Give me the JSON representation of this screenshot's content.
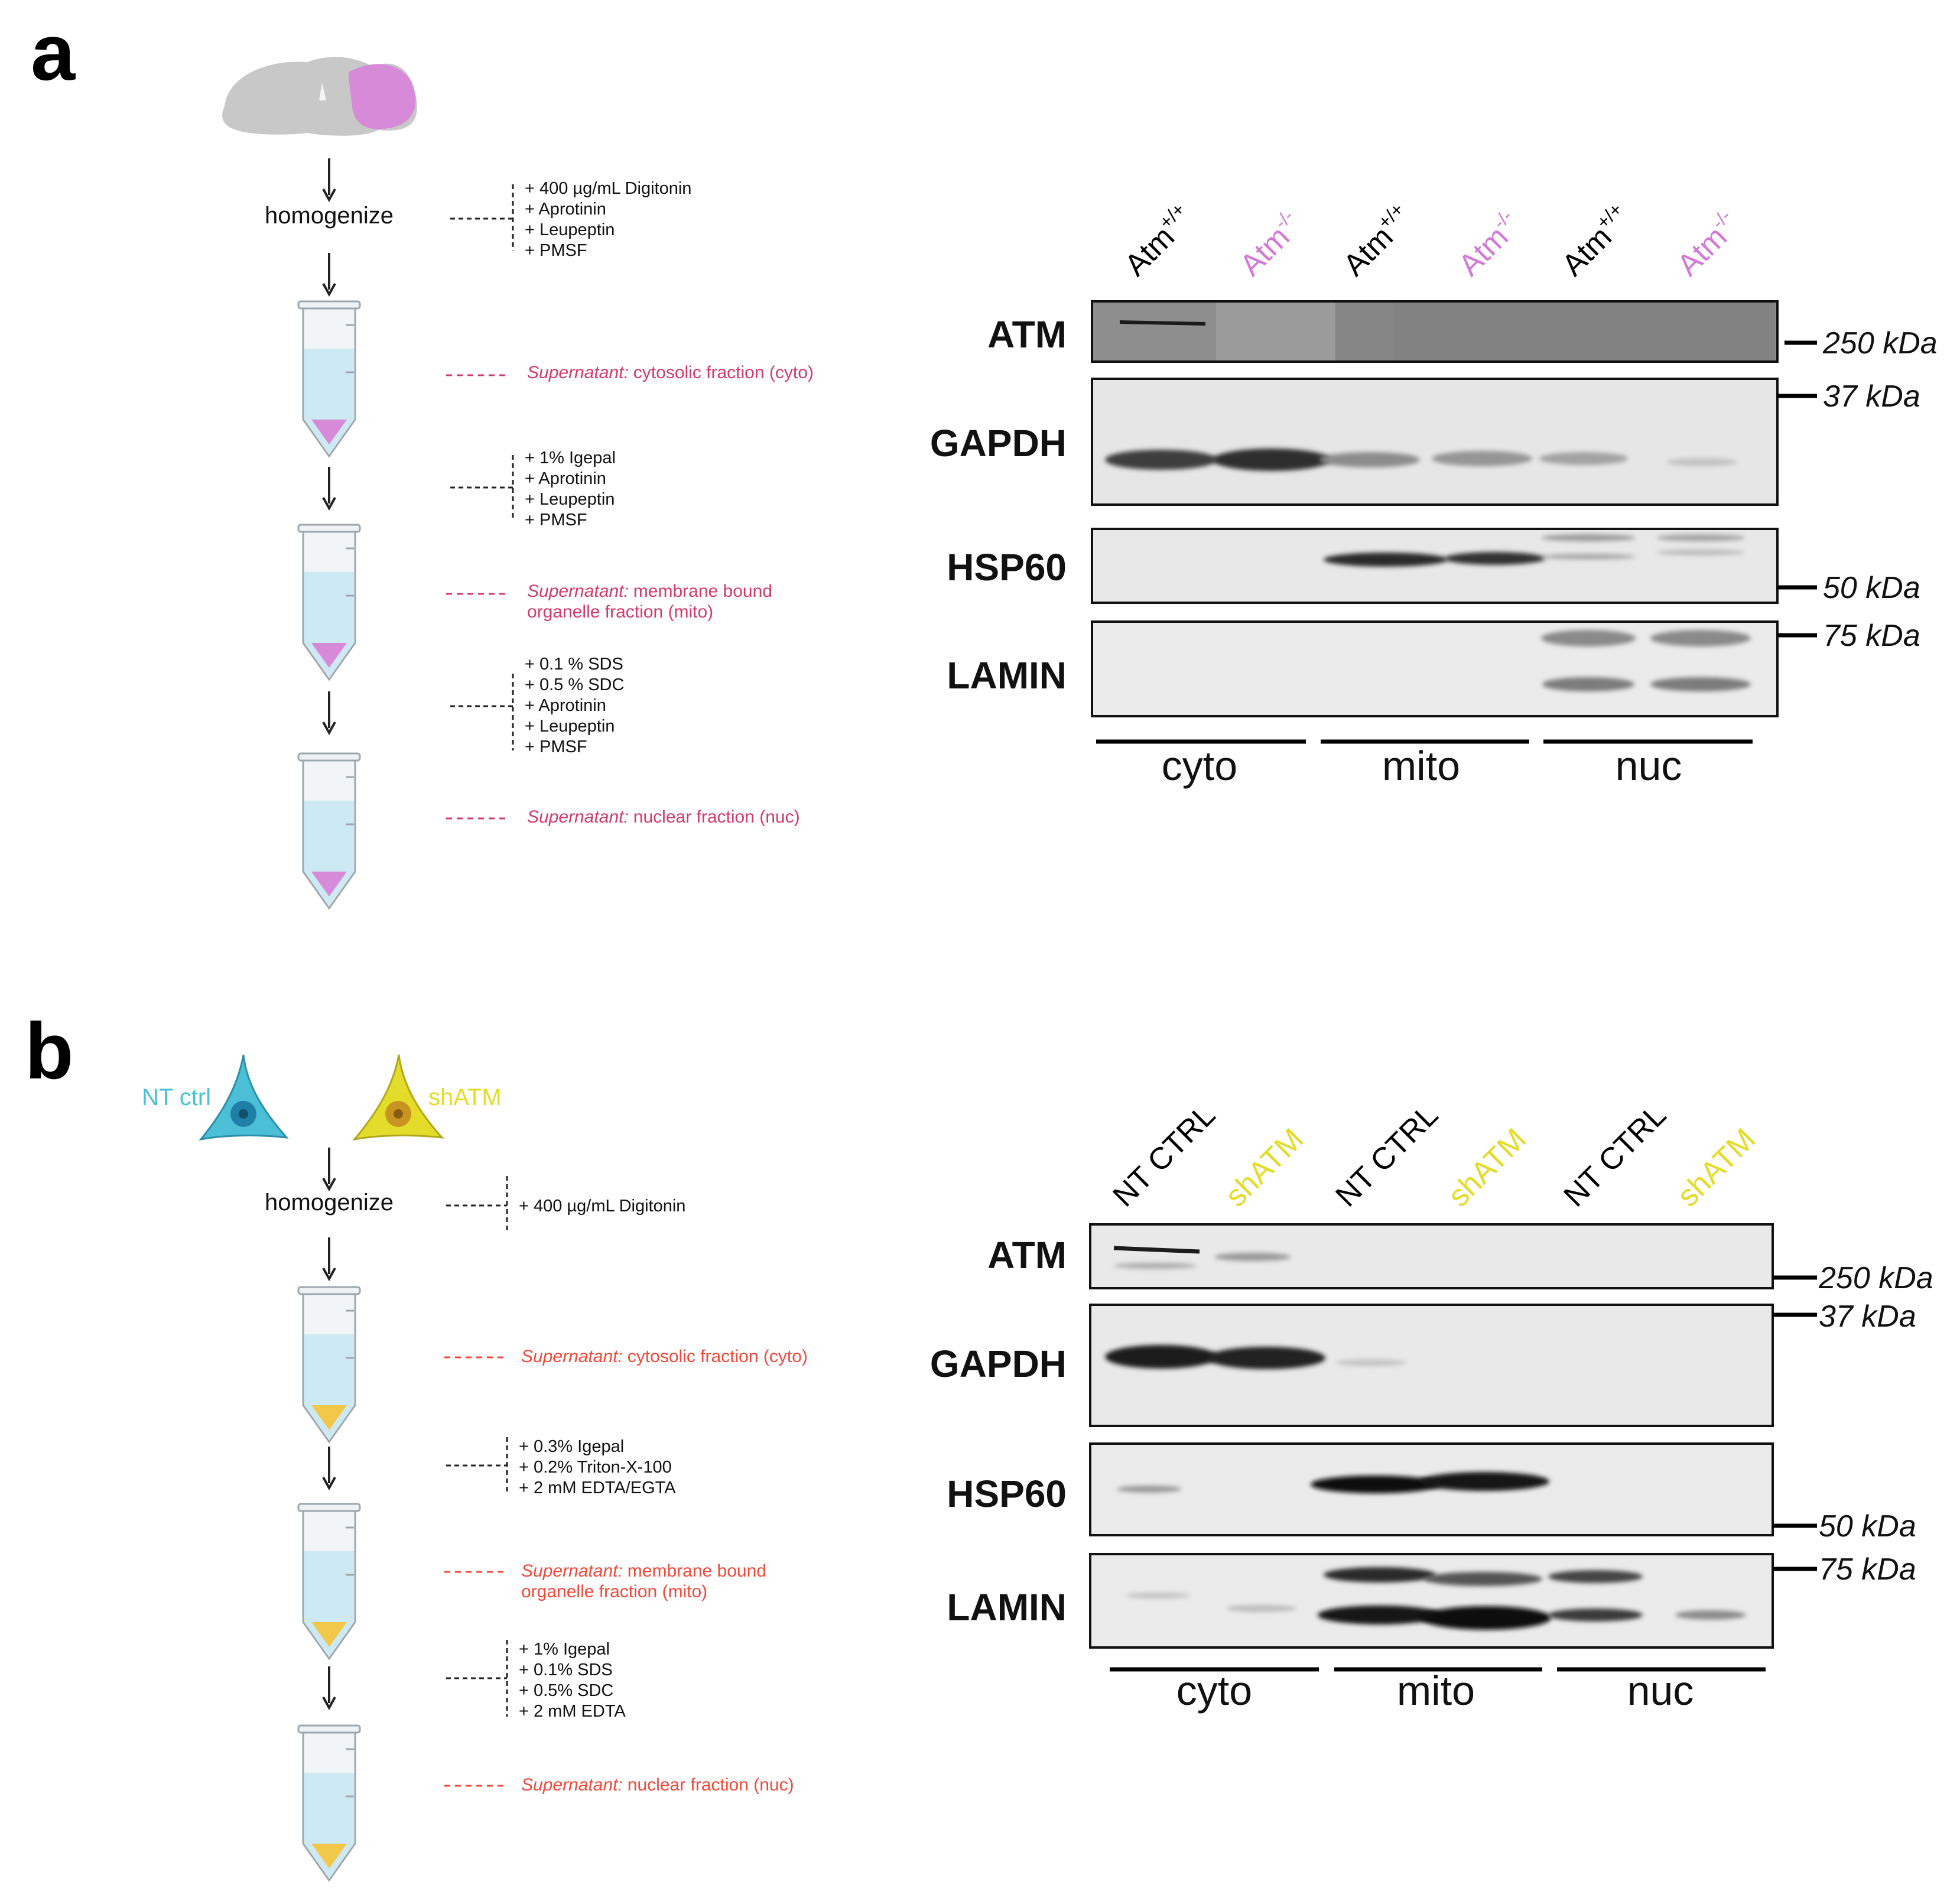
{
  "panel_a": {
    "label": "a",
    "homogenize_label": "homogenize",
    "additives": [
      [
        "+ 400 µg/mL Digitonin",
        "+ Aprotinin",
        "+ Leupeptin",
        "+ PMSF"
      ],
      [
        "+ 1% Igepal",
        "+ Aprotinin",
        "+ Leupeptin",
        "+ PMSF"
      ],
      [
        "+ 0.1 % SDS",
        "+ 0.5 % SDC",
        "+ Aprotinin",
        "+ Leupeptin",
        "+ PMSF"
      ]
    ],
    "fractions": [
      {
        "prefix": "Supernatant:",
        "text": "cytosolic fraction (cyto)"
      },
      {
        "prefix": "Supernatant:",
        "text": "membrane bound",
        "line2": "organelle fraction (mito)"
      },
      {
        "prefix": "Supernatant:",
        "text": "nuclear fraction (nuc)"
      }
    ],
    "lanes": [
      {
        "base": "Atm",
        "sup": "+/+",
        "color": "#000000"
      },
      {
        "base": "Atm",
        "sup": "-/-",
        "color": "#d37ad6"
      },
      {
        "base": "Atm",
        "sup": "+/+",
        "color": "#000000"
      },
      {
        "base": "Atm",
        "sup": "-/-",
        "color": "#d37ad6"
      },
      {
        "base": "Atm",
        "sup": "+/+",
        "color": "#000000"
      },
      {
        "base": "Atm",
        "sup": "-/-",
        "color": "#d37ad6"
      }
    ],
    "proteins": [
      "ATM",
      "GAPDH",
      "HSP60",
      "LAMIN"
    ],
    "markers": [
      "250 kDa",
      "37 kDa",
      "50 kDa",
      "75 kDa"
    ],
    "groups": [
      "cyto",
      "mito",
      "nuc"
    ]
  },
  "panel_b": {
    "label": "b",
    "cells": {
      "ctrl": "NT ctrl",
      "sh": "shATM"
    },
    "homogenize_label": "homogenize",
    "additives": [
      [
        "+ 400 µg/mL Digitonin"
      ],
      [
        "+ 0.3% Igepal",
        "+ 0.2% Triton-X-100",
        "+ 2 mM EDTA/EGTA"
      ],
      [
        "+ 1% Igepal",
        "+ 0.1% SDS",
        "+ 0.5% SDC",
        "+ 2 mM EDTA"
      ]
    ],
    "fractions": [
      {
        "prefix": "Supernatant:",
        "text": "cytosolic fraction (cyto)"
      },
      {
        "prefix": "Supernatant:",
        "text": "membrane bound",
        "line2": "organelle fraction (mito)"
      },
      {
        "prefix": "Supernatant:",
        "text": "nuclear fraction (nuc)"
      }
    ],
    "lanes": [
      {
        "base": "NT CTRL",
        "color": "#000000"
      },
      {
        "base": "shATM",
        "color": "#e3dc2a"
      },
      {
        "base": "NT CTRL",
        "color": "#000000"
      },
      {
        "base": "shATM",
        "color": "#e3dc2a"
      },
      {
        "base": "NT CTRL",
        "color": "#000000"
      },
      {
        "base": "shATM",
        "color": "#e3dc2a"
      }
    ],
    "proteins": [
      "ATM",
      "GAPDH",
      "HSP60",
      "LAMIN"
    ],
    "markers": [
      "250 kDa",
      "37 kDa",
      "50 kDa",
      "75 kDa"
    ],
    "groups": [
      "cyto",
      "mito",
      "nuc"
    ]
  },
  "colors": {
    "atm_ko": "#d37ad6",
    "shatm": "#e3dc2a",
    "nt_ctrl": "#4bbfd6",
    "fraction_a": "#d23b6a",
    "fraction_b": "#ef4a3a",
    "tube_liquid": "#cde9f3",
    "pellet_a": "#d37ad6",
    "pellet_b": "#f2c84b"
  }
}
